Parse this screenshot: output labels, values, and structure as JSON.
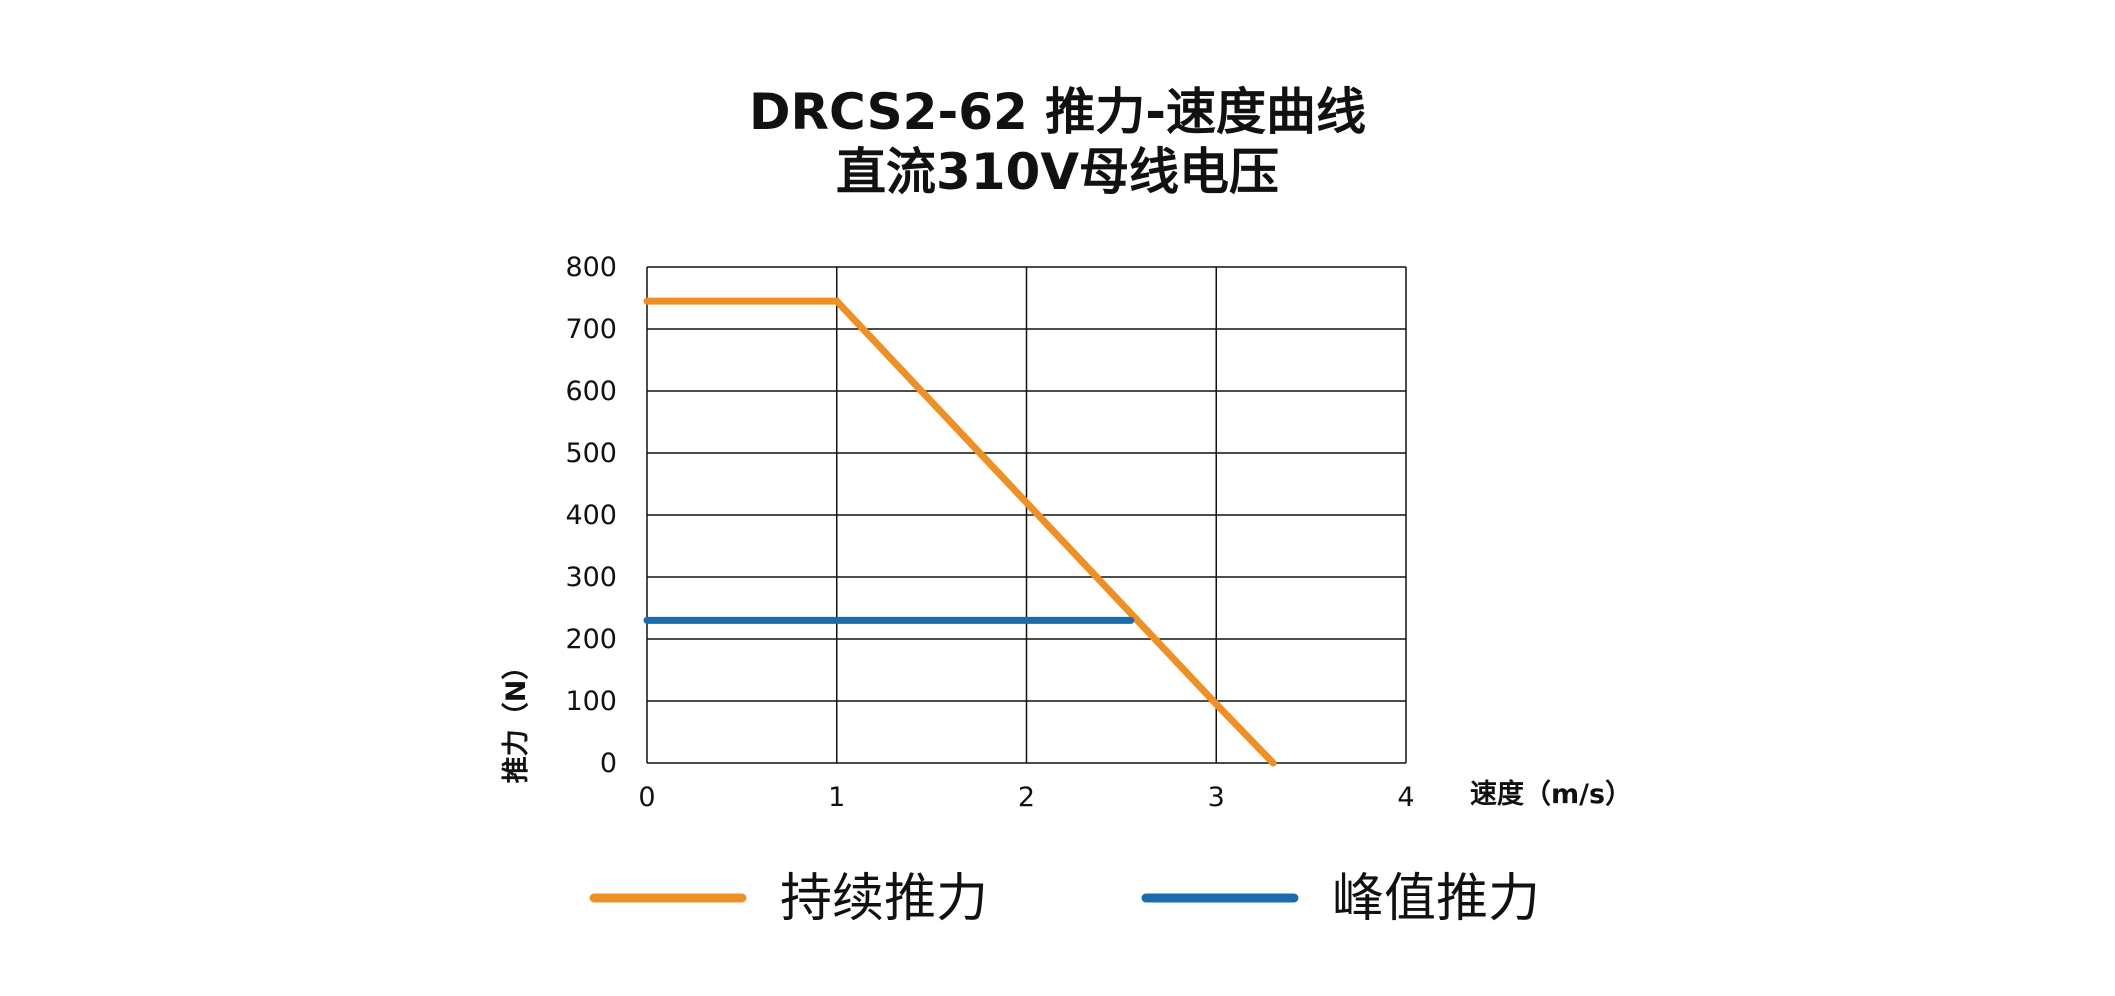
{
  "chart_data": {
    "type": "line",
    "title": "DRCS2-62 推力-速度曲线",
    "subtitle": "直流310V母线电压",
    "xlabel": "速度（m/s）",
    "ylabel": "推力（N）",
    "xlim": [
      0,
      4
    ],
    "ylim": [
      0,
      800
    ],
    "x_ticks": [
      "0",
      "1",
      "2",
      "3",
      "4"
    ],
    "y_ticks": [
      "0",
      "100",
      "200",
      "300",
      "400",
      "500",
      "600",
      "700",
      "800"
    ],
    "grid": true,
    "legend_position": "bottom",
    "series": [
      {
        "name": "持续推力",
        "color": "#ef9026",
        "x": [
          0,
          1,
          2,
          3,
          3.3
        ],
        "y": [
          745,
          745,
          420,
          95,
          0
        ]
      },
      {
        "name": "峰值推力",
        "color": "#1b6cae",
        "x": [
          0,
          2.55
        ],
        "y": [
          230,
          230
        ]
      }
    ]
  }
}
